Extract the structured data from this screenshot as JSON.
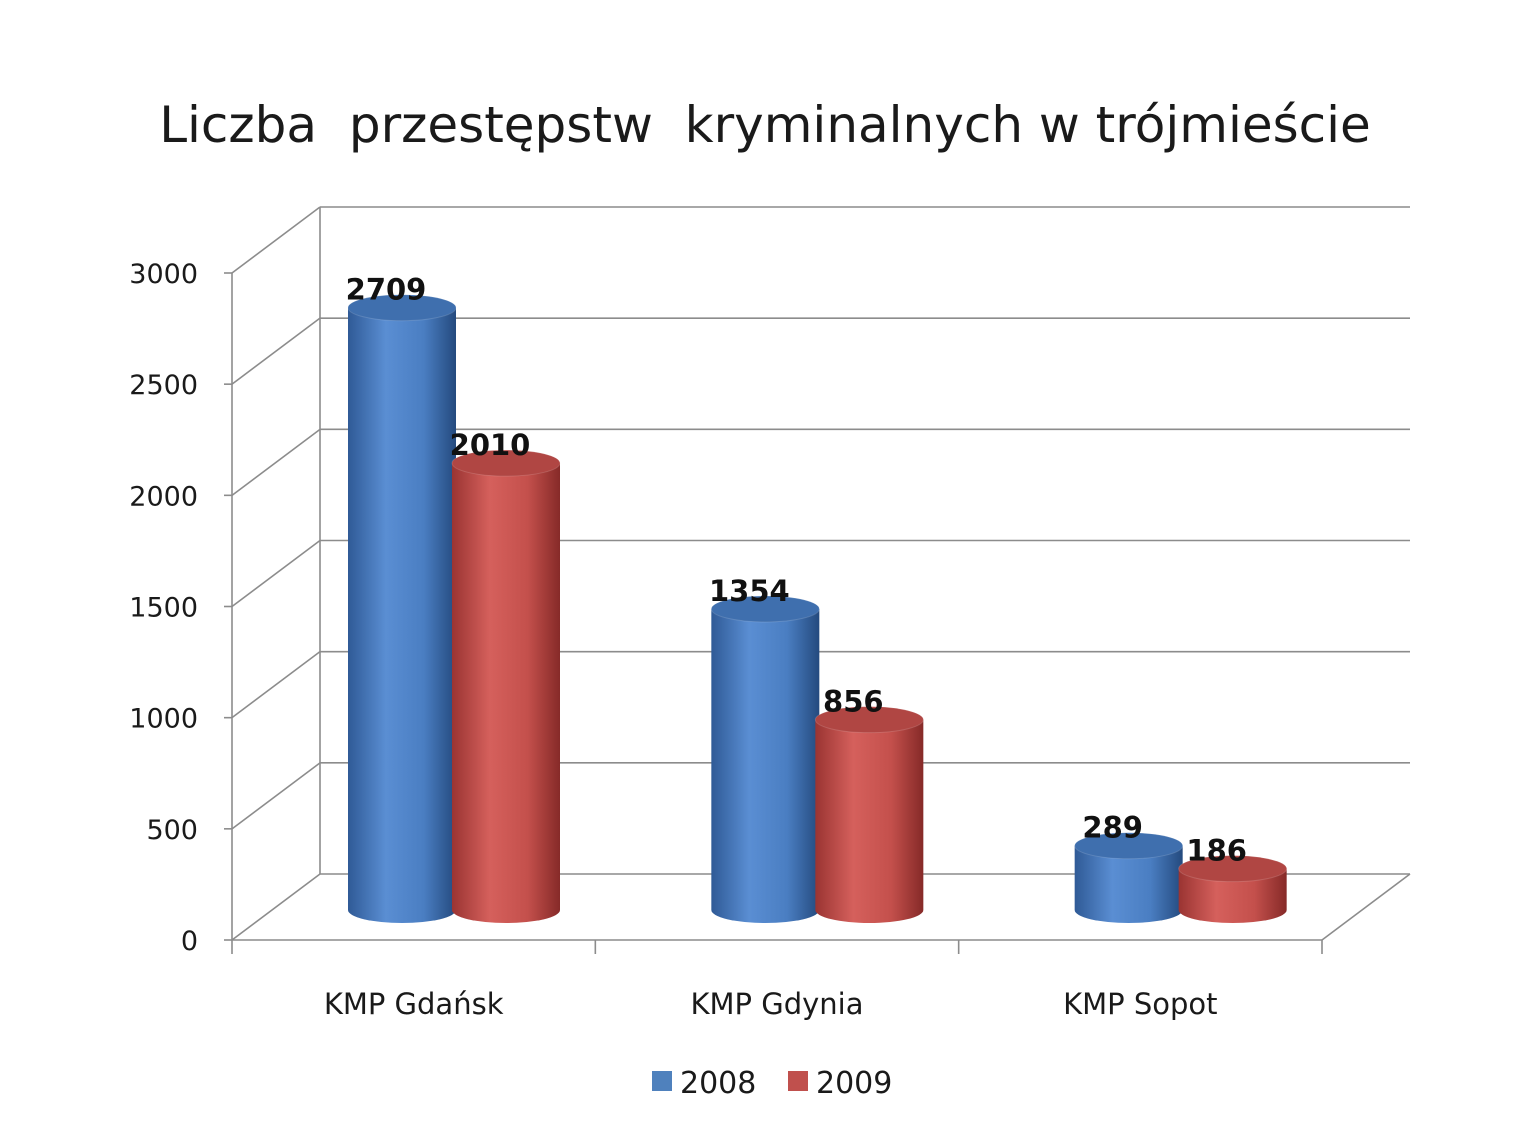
{
  "chart_data": {
    "type": "bar",
    "title": "Liczba  przestępstw  kryminalnych w trójmieście",
    "categories": [
      "KMP Gdańsk",
      "KMP Gdynia",
      "KMP Sopot"
    ],
    "series": [
      {
        "name": "2008",
        "values": [
          2709,
          1354,
          289
        ],
        "color": "#4f81bd"
      },
      {
        "name": "2009",
        "values": [
          2010,
          856,
          186
        ],
        "color": "#c0504d"
      }
    ],
    "ylim": [
      0,
      3000
    ],
    "yticks": [
      0,
      500,
      1000,
      1500,
      2000,
      2500,
      3000
    ],
    "grid": true,
    "legend": "bottom",
    "style": "3d-cylinder"
  }
}
